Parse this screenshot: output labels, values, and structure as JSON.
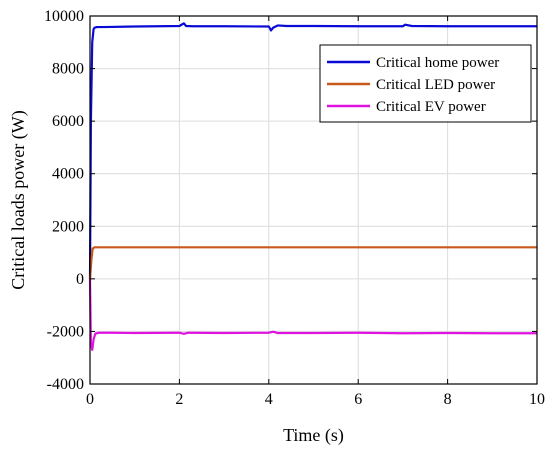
{
  "chart_data": {
    "type": "line",
    "title": "",
    "xlabel": "Time (s)",
    "ylabel": "Critical loads power (W)",
    "xlim": [
      0,
      10
    ],
    "ylim": [
      -4000,
      10000
    ],
    "xticks": [
      0,
      2,
      4,
      6,
      8,
      10
    ],
    "yticks": [
      -4000,
      -2000,
      0,
      2000,
      4000,
      6000,
      8000,
      10000
    ],
    "xtick_labels": [
      "0",
      "2",
      "4",
      "6",
      "8",
      "10"
    ],
    "ytick_labels": [
      "-4000",
      "-2000",
      "0",
      "2000",
      "4000",
      "6000",
      "8000",
      "10000"
    ],
    "grid": true,
    "legend_position": "top-right",
    "series": [
      {
        "name": "Critical home power",
        "color": "#0a0ad6",
        "x": [
          0,
          0.02,
          0.05,
          0.08,
          0.1,
          0.15,
          0.3,
          1.0,
          2.0,
          2.1,
          2.15,
          2.3,
          3.0,
          4.0,
          4.05,
          4.1,
          4.2,
          4.4,
          5.0,
          6.0,
          7.0,
          7.05,
          7.2,
          8.0,
          9.0,
          10.0
        ],
        "y": [
          0,
          6000,
          9000,
          9500,
          9550,
          9580,
          9580,
          9600,
          9620,
          9720,
          9620,
          9610,
          9610,
          9600,
          9450,
          9560,
          9640,
          9620,
          9620,
          9610,
          9610,
          9670,
          9620,
          9610,
          9610,
          9610
        ]
      },
      {
        "name": "Critical LED power",
        "color": "#c8581c",
        "x": [
          0,
          0.03,
          0.06,
          0.1,
          0.2,
          1.0,
          5.0,
          10.0
        ],
        "y": [
          0,
          700,
          1150,
          1200,
          1200,
          1200,
          1200,
          1200
        ]
      },
      {
        "name": "Critical EV power",
        "color": "#e012e0",
        "x": [
          0,
          0.02,
          0.05,
          0.08,
          0.12,
          0.2,
          0.5,
          1.0,
          2.0,
          2.1,
          2.2,
          3.0,
          4.0,
          4.1,
          4.2,
          5.0,
          6.0,
          7.0,
          8.0,
          9.0,
          10.0
        ],
        "y": [
          0,
          -2500,
          -2700,
          -2300,
          -2080,
          -2050,
          -2050,
          -2060,
          -2050,
          -2090,
          -2050,
          -2060,
          -2050,
          -2010,
          -2060,
          -2060,
          -2050,
          -2070,
          -2060,
          -2070,
          -2070
        ]
      }
    ]
  }
}
